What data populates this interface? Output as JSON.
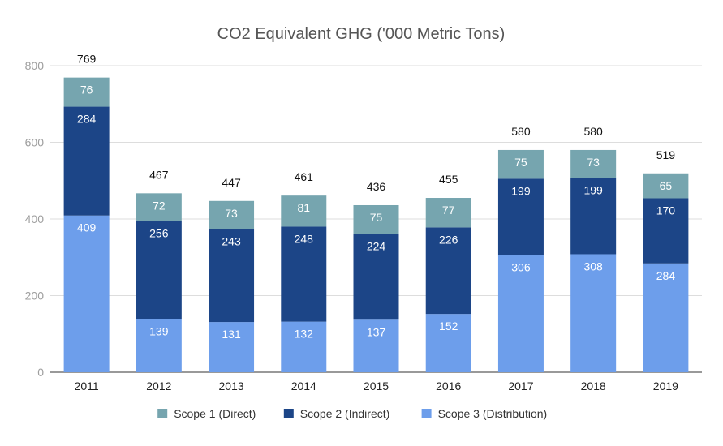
{
  "chart_data": {
    "type": "bar",
    "stacked": true,
    "title": "CO2 Equivalent GHG ('000 Metric Tons)",
    "xlabel": "",
    "ylabel": "",
    "ylim": [
      0,
      800
    ],
    "yticks": [
      "0",
      "200",
      "400",
      "600",
      "800"
    ],
    "grid": true,
    "legend_position": "bottom",
    "categories": [
      "2011",
      "2012",
      "2013",
      "2014",
      "2015",
      "2016",
      "2017",
      "2018",
      "2019"
    ],
    "series": [
      {
        "name": "Scope 3 (Distribution)",
        "color": "#6d9eeb",
        "values": [
          409,
          139,
          131,
          132,
          137,
          152,
          306,
          308,
          284
        ]
      },
      {
        "name": "Scope 2 (Indirect)",
        "color": "#1c4587",
        "values": [
          284,
          256,
          243,
          248,
          224,
          226,
          199,
          199,
          170
        ]
      },
      {
        "name": "Scope 1 (Direct)",
        "color": "#76a5af",
        "values": [
          76,
          72,
          73,
          81,
          75,
          77,
          75,
          73,
          65
        ]
      }
    ],
    "totals": [
      769,
      467,
      447,
      461,
      436,
      455,
      580,
      580,
      519
    ]
  }
}
